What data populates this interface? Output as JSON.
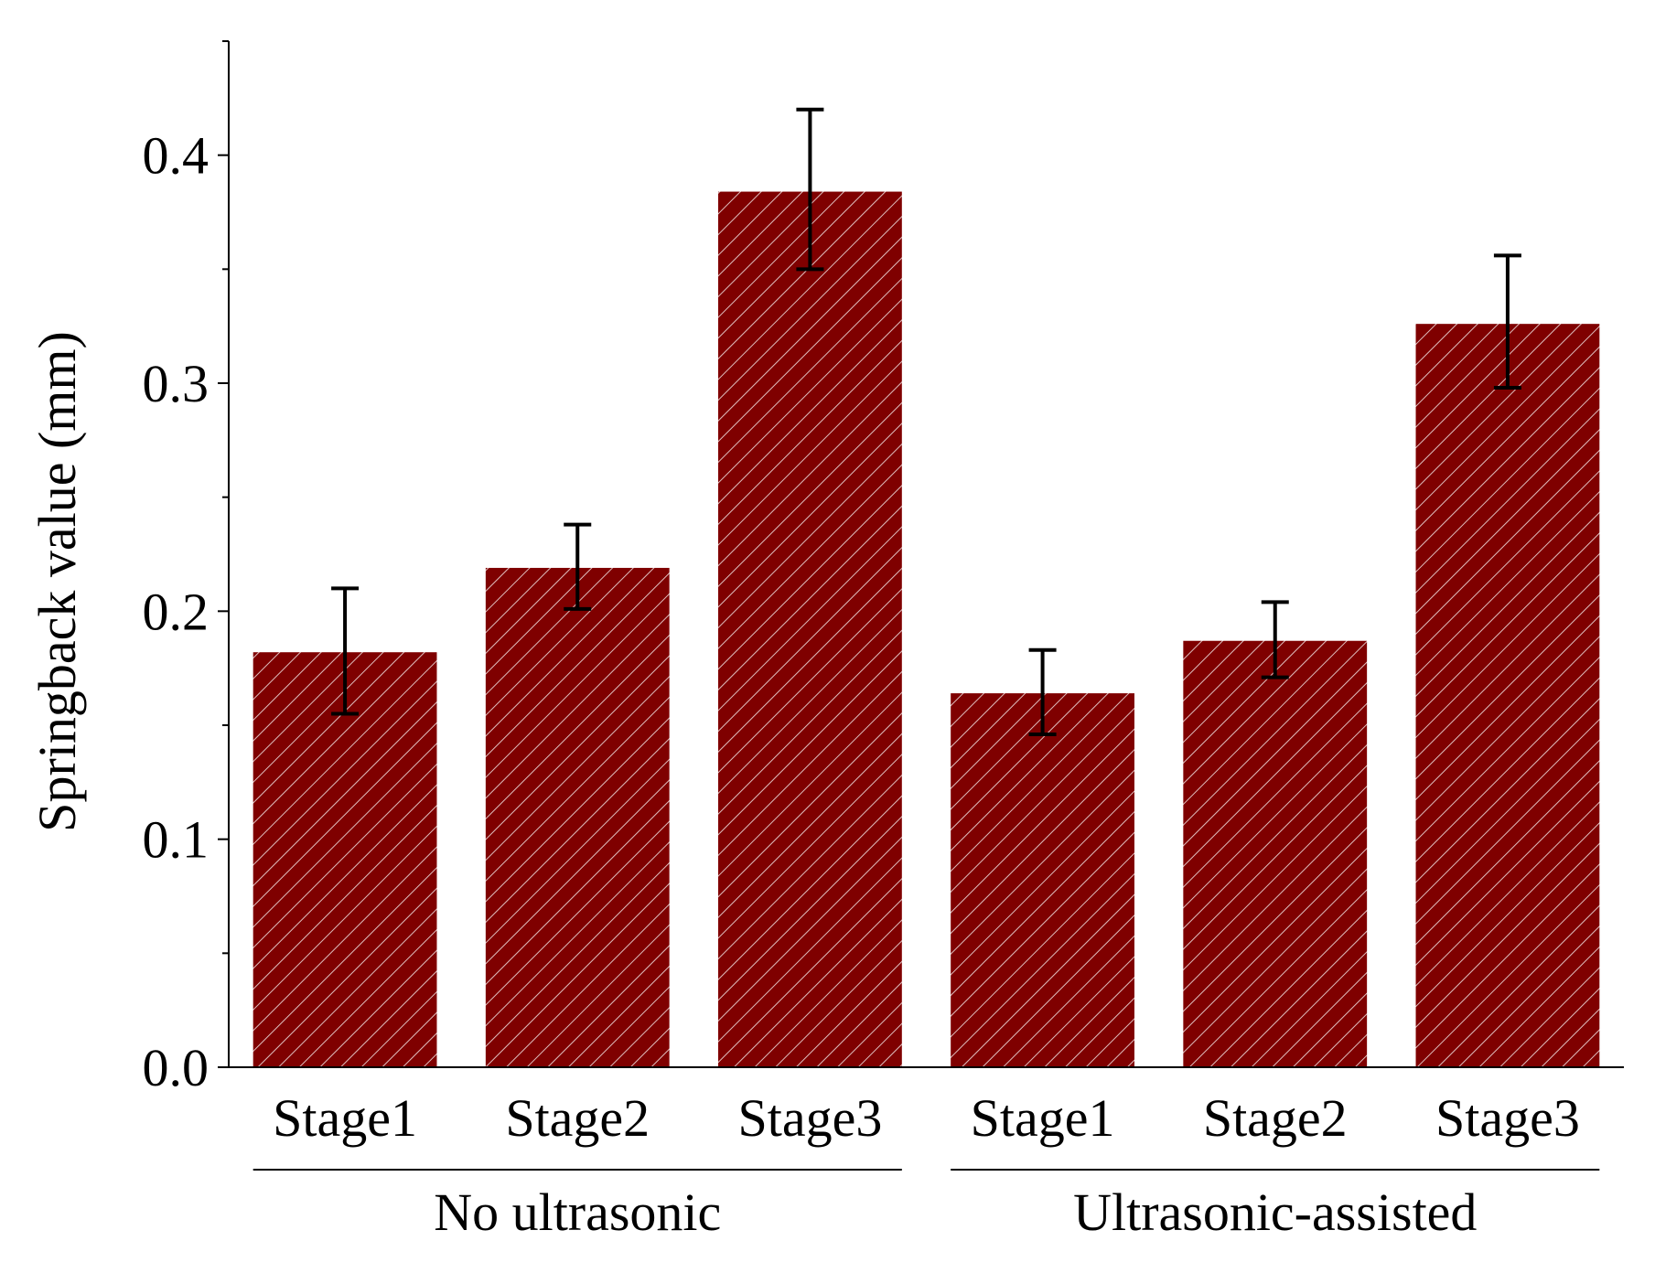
{
  "chart_data": {
    "type": "bar",
    "title": "",
    "xlabel": "",
    "ylabel": "Springback value (mm)",
    "ylim": [
      0,
      0.45
    ],
    "yticks": [
      0.0,
      0.1,
      0.2,
      0.3,
      0.4
    ],
    "ytick_labels": [
      "0.0",
      "0.1",
      "0.2",
      "0.3",
      "0.4"
    ],
    "bar_color": "#7f0000",
    "hatch": "diagonal",
    "groups": [
      {
        "label": "No ultrasonic",
        "bars": [
          {
            "category": "Stage1",
            "value": 0.182,
            "err_low": 0.155,
            "err_high": 0.21
          },
          {
            "category": "Stage2",
            "value": 0.219,
            "err_low": 0.201,
            "err_high": 0.238
          },
          {
            "category": "Stage3",
            "value": 0.384,
            "err_low": 0.35,
            "err_high": 0.42
          }
        ]
      },
      {
        "label": "Ultrasonic-assisted",
        "bars": [
          {
            "category": "Stage1",
            "value": 0.164,
            "err_low": 0.146,
            "err_high": 0.183
          },
          {
            "category": "Stage2",
            "value": 0.187,
            "err_low": 0.171,
            "err_high": 0.204
          },
          {
            "category": "Stage3",
            "value": 0.326,
            "err_low": 0.298,
            "err_high": 0.356
          }
        ]
      }
    ]
  }
}
